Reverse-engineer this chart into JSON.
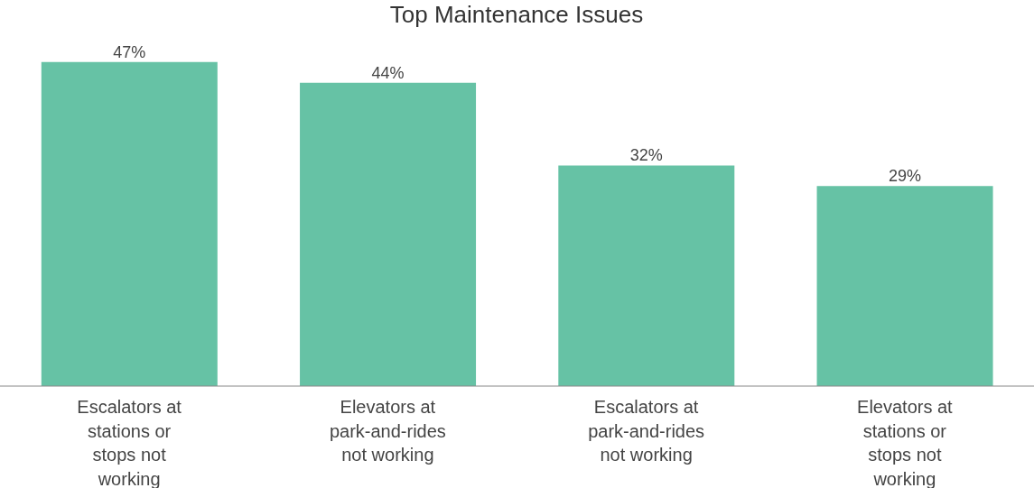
{
  "chart_data": {
    "type": "bar",
    "title": "Top Maintenance Issues",
    "categories": [
      "Escalators at stations or stops not working",
      "Elevators at park-and-rides not working",
      "Escalators at park-and-rides not working",
      "Elevators at stations or stops not working"
    ],
    "values": [
      47,
      44,
      32,
      29
    ],
    "value_labels": [
      "47%",
      "44%",
      "32%",
      "29%"
    ],
    "color": "#66c2a5",
    "tick_labels": "x"
  }
}
